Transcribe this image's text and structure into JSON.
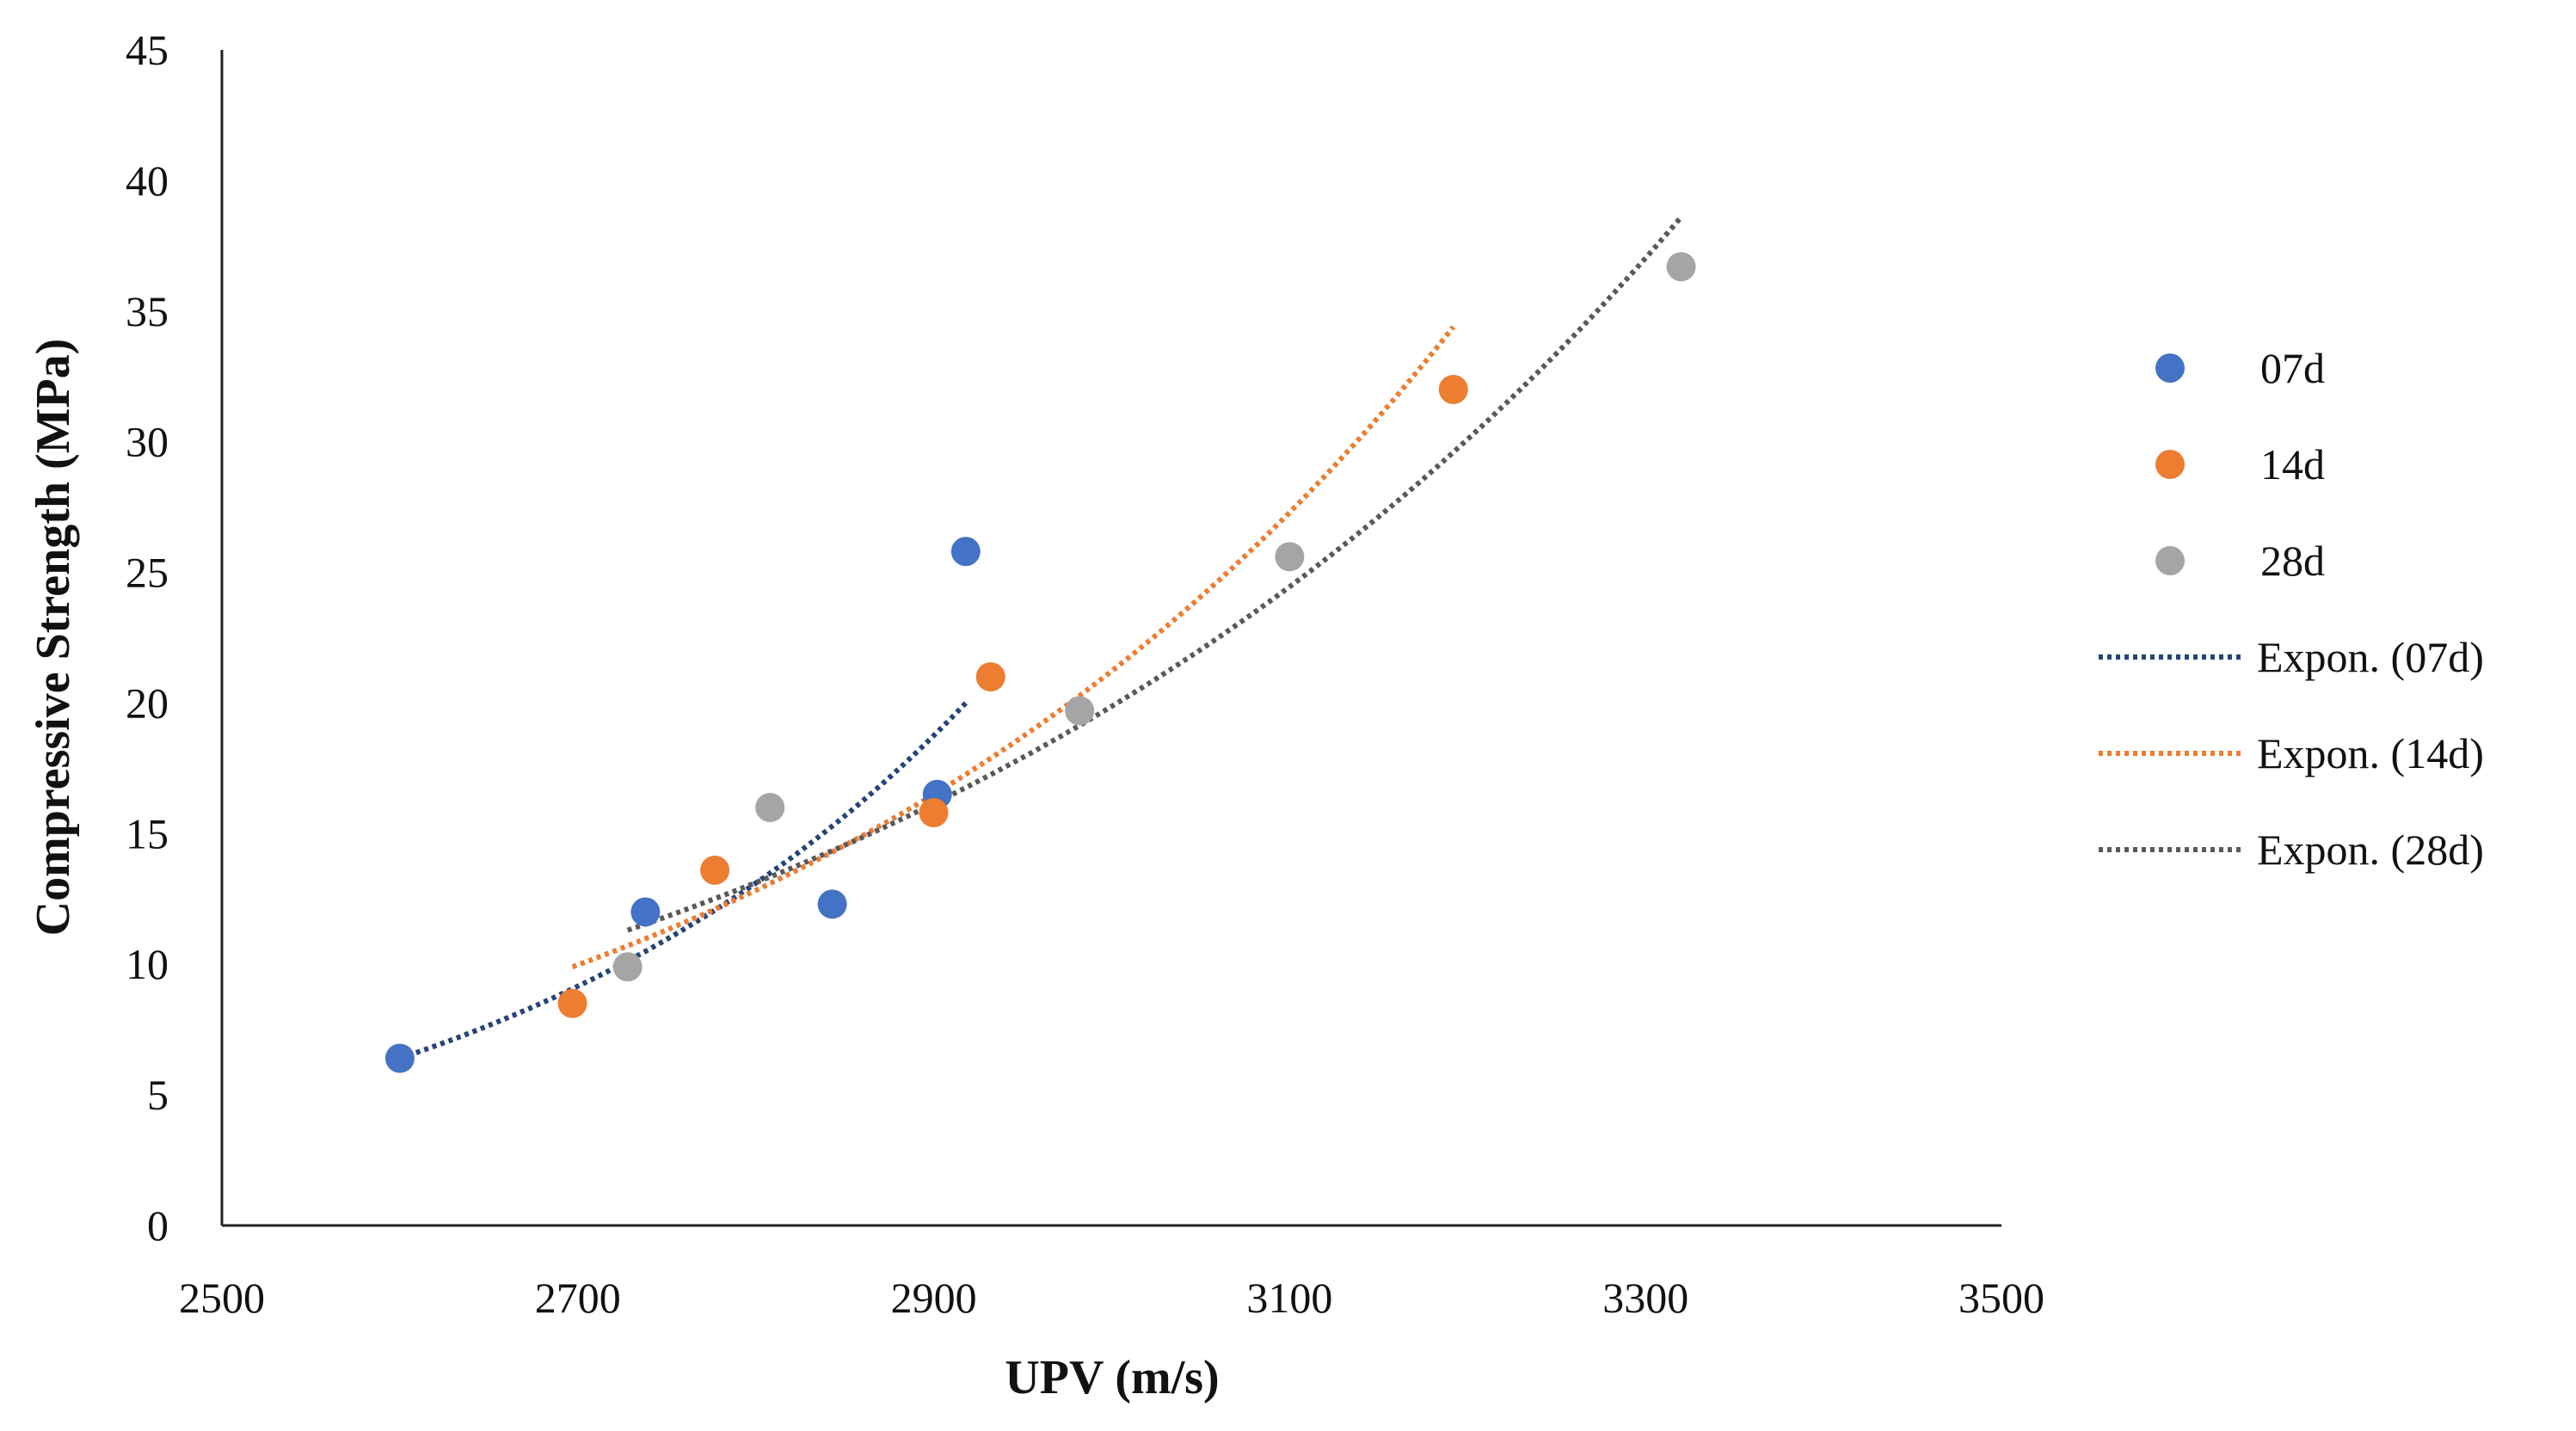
{
  "chart_data": {
    "type": "scatter",
    "title": "",
    "xlabel": "UPV (m/s)",
    "ylabel": "Compressive Strength (MPa)",
    "xlim": [
      2500,
      3500
    ],
    "ylim": [
      0,
      45
    ],
    "x_ticks": [
      "2500",
      "2700",
      "2900",
      "3100",
      "3300",
      "3500"
    ],
    "y_ticks": [
      "0",
      "5",
      "10",
      "15",
      "20",
      "25",
      "30",
      "35",
      "40",
      "45"
    ],
    "grid": false,
    "legend_position": "right",
    "series": [
      {
        "name": "07d",
        "color": "#4472C4",
        "points": [
          [
            2600,
            6.4
          ],
          [
            2738,
            12.0
          ],
          [
            2843,
            12.3
          ],
          [
            2902,
            16.5
          ],
          [
            2918,
            25.8
          ]
        ]
      },
      {
        "name": "14d",
        "color": "#ED7D31",
        "points": [
          [
            2697,
            8.5
          ],
          [
            2777,
            13.6
          ],
          [
            2900,
            15.8
          ],
          [
            2932,
            21.0
          ],
          [
            3192,
            32.0
          ]
        ]
      },
      {
        "name": "28d",
        "color": "#A5A5A5",
        "points": [
          [
            2728,
            9.9
          ],
          [
            2808,
            16.0
          ],
          [
            2982,
            19.7
          ],
          [
            3100,
            25.6
          ],
          [
            3320,
            36.7
          ]
        ]
      }
    ],
    "trendlines": [
      {
        "name": "Expon. (07d)",
        "type": "exponential",
        "color": "#264478",
        "x_range": [
          2600,
          2918
        ],
        "y_range": [
          6.4,
          20.0
        ]
      },
      {
        "name": "Expon. (14d)",
        "type": "exponential",
        "color": "#ED7D31",
        "x_range": [
          2697,
          3192
        ],
        "y_range": [
          9.9,
          34.4
        ]
      },
      {
        "name": "Expon. (28d)",
        "type": "exponential",
        "color": "#595959",
        "x_range": [
          2728,
          3320
        ],
        "y_range": [
          11.3,
          38.6
        ]
      }
    ]
  }
}
